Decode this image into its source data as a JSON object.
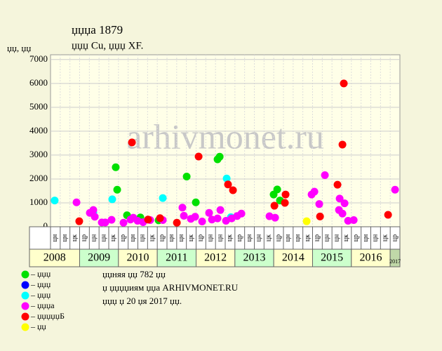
{
  "chart_data": {
    "type": "scatter",
    "title": "џџџа 1879",
    "subtitle": "џџџ Cu, џџџ XF.",
    "y_label": "џџ, џџ",
    "watermark": "arhivmonet.ru",
    "xlim": [
      0,
      36
    ],
    "ylim": [
      0,
      7200
    ],
    "yticks": [
      0,
      1000,
      2000,
      3000,
      4000,
      5000,
      6000,
      7000
    ],
    "grid": true,
    "categories": [
      "цн",
      "цн",
      "цк",
      "цр",
      "цн",
      "цн",
      "цк",
      "цр",
      "цн",
      "цн",
      "цк",
      "цр",
      "цн",
      "цн",
      "цк",
      "цр",
      "цн",
      "цн",
      "цк",
      "цр",
      "цн",
      "цн",
      "цк",
      "цр",
      "цн",
      "цн",
      "цк",
      "цр",
      "цн",
      "цн",
      "цк",
      "цр",
      "цн",
      "цн",
      "цк",
      "цр"
    ],
    "years": [
      {
        "label": "2008",
        "span": 3
      },
      {
        "label": "2009",
        "span": 4
      },
      {
        "label": "2010",
        "span": 4
      },
      {
        "label": "2011",
        "span": 4
      },
      {
        "label": "2012",
        "span": 4
      },
      {
        "label": "2013",
        "span": 4
      },
      {
        "label": "2014",
        "span": 4
      },
      {
        "label": "2015",
        "span": 4
      },
      {
        "label": "2016",
        "span": 4
      },
      {
        "label": "2017",
        "span": 1
      }
    ],
    "series": [
      {
        "name": "– џџџ",
        "color": "#00e000",
        "x": [
          6.72,
          6.87,
          7.88,
          9.26,
          11.14,
          14.03,
          14.97,
          17.21,
          17.43,
          22.99,
          23.36,
          23.64
        ],
        "values": [
          2490,
          1550,
          480,
          390,
          270,
          2100,
          1020,
          2820,
          2930,
          1350,
          1560,
          1100
        ]
      },
      {
        "name": "– џџџ",
        "color": "#0000ff",
        "x": [],
        "values": []
      },
      {
        "name": "– џџџ",
        "color": "#00ffff",
        "x": [
          0.43,
          4.41,
          6.36,
          11.57,
          18.15,
          18.58
        ],
        "values": [
          1100,
          600,
          1150,
          1200,
          2020,
          400
        ]
      },
      {
        "name": "– џџџа",
        "color": "#ff00ff",
        "x": [
          2.68,
          4.05,
          4.41,
          4.56,
          5.28,
          5.64,
          6.29,
          7.52,
          8.24,
          8.53,
          8.97,
          9.54,
          10.27,
          11.57,
          13.59,
          13.74,
          14.46,
          14.9,
          15.62,
          16.34,
          16.63,
          17.21,
          17.5,
          18.08,
          18.66,
          19.23,
          19.67,
          22.56,
          23.14,
          26.9,
          27.19,
          27.69,
          28.27,
          29.72,
          29.79,
          30.08,
          30.3,
          30.66,
          31.24,
          35.5
        ],
        "values": [
          1020,
          580,
          700,
          420,
          180,
          180,
          290,
          170,
          300,
          380,
          250,
          190,
          280,
          280,
          800,
          460,
          330,
          420,
          220,
          580,
          300,
          350,
          700,
          250,
          350,
          450,
          550,
          440,
          380,
          1350,
          1470,
          950,
          2160,
          700,
          1180,
          550,
          980,
          250,
          280,
          1550
        ]
      },
      {
        "name": "– џџџџџБ",
        "color": "#ff0000",
        "x": [
          2.96,
          8.39,
          10.05,
          11.28,
          13.02,
          15.26,
          18.29,
          18.8,
          23.07,
          24.22,
          24.15,
          27.77,
          29.57,
          30.08,
          30.22,
          34.78
        ],
        "values": [
          230,
          3530,
          300,
          360,
          170,
          2940,
          1770,
          1530,
          880,
          1350,
          1000,
          430,
          1760,
          3440,
          6000,
          500
        ]
      },
      {
        "name": "– џџ",
        "color": "#ffff00",
        "x": [
          26.39
        ],
        "values": [
          230
        ]
      }
    ],
    "footer": [
      "џџняя џџ 782 џџ",
      "џ џџџџиям џџа ARHIVMONET.RU",
      "џџџ џ 20 џя 2017 џџ."
    ]
  }
}
